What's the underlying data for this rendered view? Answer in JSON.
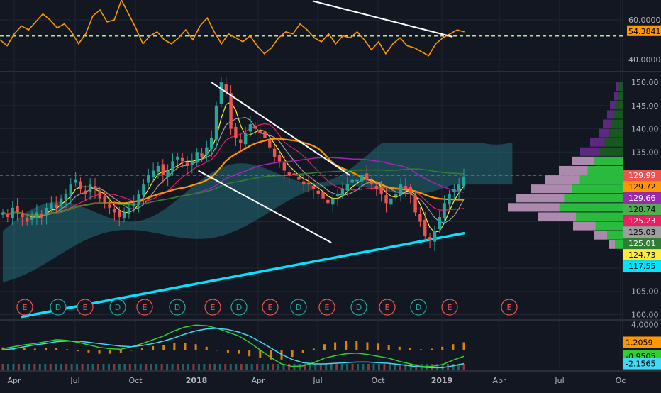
{
  "colors": {
    "background": "#131722",
    "grid": "#1f2533",
    "divider": "#2a2e39",
    "axis_text": "#b2b5be",
    "candle_up": "#26a69a",
    "candle_down": "#ef5350",
    "rsi_line": "#ff9800",
    "rsi_ref": "#b6e3a0",
    "trendline": "#ffffff",
    "macd_line": "#41d9f5",
    "signal_line": "#2fd12f",
    "hist_pos": "#ff9800",
    "hist_neg": "#ff9800",
    "cloud": "#2b9aa6",
    "earnings_marker": "#ef5350",
    "dividend_marker": "#26a69a"
  },
  "chart_data": [
    {
      "id": "rsi-pane",
      "type": "line",
      "ylim": [
        34,
        70
      ],
      "ticks": [
        "60.0000",
        "40.0000"
      ],
      "tick_values": [
        60,
        40
      ],
      "reference_level": 52.0,
      "current_value": "54.3841",
      "current_value_num": 54.3841,
      "series": [
        {
          "values": [
            50,
            47,
            53,
            57,
            55,
            59,
            63,
            60,
            56,
            58,
            54,
            48,
            53,
            62,
            65,
            59,
            60,
            70,
            63,
            56,
            48,
            52,
            54,
            50,
            48,
            51,
            55,
            50,
            57,
            61,
            54,
            48,
            53,
            51,
            49,
            52,
            47,
            43,
            46,
            51,
            54,
            53,
            58,
            55,
            51,
            49,
            53,
            48,
            52,
            51,
            54,
            50,
            45,
            49,
            43,
            48,
            51,
            47,
            46,
            44,
            42,
            48,
            51,
            53,
            55,
            54
          ]
        }
      ],
      "trendlines": [
        {
          "from": [
            0.67,
            69.5
          ],
          "to": [
            0.97,
            51.5
          ]
        }
      ]
    },
    {
      "id": "price-pane",
      "type": "candlestick",
      "ylim": [
        99,
        152
      ],
      "y_ticks": [
        "150.00",
        "145.00",
        "140.00",
        "135.00",
        "130.00",
        "125.00",
        "120.00",
        "115.00",
        "110.00",
        "105.00",
        "100.00"
      ],
      "y_tick_values": [
        150,
        145,
        140,
        135,
        130,
        125,
        120,
        115,
        110,
        105,
        100
      ],
      "close": [
        122,
        121,
        123,
        122,
        121,
        120,
        121,
        122,
        121,
        123,
        124,
        123,
        125,
        126,
        128,
        129,
        127,
        126,
        128,
        127,
        125,
        124,
        123,
        122,
        121,
        122,
        123,
        124,
        126,
        128,
        130,
        131,
        132,
        130,
        131,
        133,
        134,
        133,
        132,
        133,
        135,
        134,
        136,
        138,
        145,
        150,
        148,
        140,
        138,
        137,
        139,
        141,
        140,
        139,
        138,
        136,
        134,
        133,
        131,
        130,
        130,
        129,
        128,
        128,
        127,
        126,
        125,
        124,
        125,
        126,
        127,
        128,
        129,
        129,
        130,
        129,
        128,
        127,
        126,
        124,
        125,
        126,
        128,
        127,
        126,
        122,
        120,
        117,
        116,
        118,
        121,
        124,
        126,
        127,
        128,
        129.72
      ],
      "price_labels": [
        {
          "text": "129.99",
          "value": 129.99,
          "color": "#ef5350"
        },
        {
          "text": "129.72",
          "value": 129.72,
          "color": "#ff9800"
        },
        {
          "text": "129.66",
          "value": 129.66,
          "color": "#9c27b0"
        },
        {
          "text": "128.74",
          "value": 128.74,
          "color": "#4caf50"
        },
        {
          "text": "125.23",
          "value": 125.23,
          "color": "#e91e63"
        },
        {
          "text": "125.03",
          "value": 125.03,
          "color": "#9e9e9e"
        },
        {
          "text": "125.01",
          "value": 125.01,
          "color": "#2e7d32"
        },
        {
          "text": "124.73",
          "value": 124.73,
          "color": "#ffeb3b"
        },
        {
          "text": "117.55",
          "value": 117.55,
          "color": "#00e5ff"
        }
      ],
      "trendlines": [
        {
          "from": [
            0.32,
            150.0
          ],
          "to": [
            0.75,
            130.0
          ]
        },
        {
          "from": [
            0.3,
            131.0
          ],
          "to": [
            0.71,
            115.5
          ]
        }
      ],
      "events": [
        "E",
        "D",
        "E",
        "D",
        "E",
        "D",
        "E",
        "D",
        "E",
        "D",
        "E",
        "D",
        "E",
        "D",
        "E",
        "E"
      ]
    },
    {
      "id": "macd-pane",
      "type": "line",
      "ylim": [
        -3.2,
        4.6
      ],
      "ticks": [
        "4.0000"
      ],
      "tick_values": [
        4.0
      ],
      "value_labels": [
        {
          "text": "1.2059",
          "value": 1.2059,
          "color": "#ff9800"
        },
        {
          "text": "-0.9505",
          "value": -0.9505,
          "color": "#2fd12f"
        },
        {
          "text": "-2.1565",
          "value": -2.1565,
          "color": "#41d9f5"
        }
      ],
      "series": [
        {
          "name": "",
          "values": [
            0.2,
            0.5,
            0.8,
            1.0,
            1.3,
            1.6,
            1.5,
            1.2,
            0.8,
            0.4,
            0.2,
            0.1,
            0.5,
            1.0,
            1.6,
            2.2,
            3.0,
            3.6,
            3.9,
            3.8,
            3.4,
            2.8,
            2.2,
            1.2,
            0.0,
            -1.2,
            -2.2,
            -2.6,
            -2.5,
            -2.0,
            -1.3,
            -0.9,
            -0.6,
            -0.5,
            -0.7,
            -1.0,
            -1.3,
            -1.8,
            -2.2,
            -2.6,
            -2.6,
            -2.3,
            -1.6,
            -1.0
          ]
        },
        {
          "name": "",
          "values": [
            0.0,
            0.2,
            0.5,
            0.8,
            1.0,
            1.3,
            1.4,
            1.4,
            1.2,
            1.0,
            0.8,
            0.6,
            0.5,
            0.7,
            1.0,
            1.4,
            1.9,
            2.5,
            3.0,
            3.3,
            3.4,
            3.2,
            2.8,
            2.2,
            1.3,
            0.3,
            -0.7,
            -1.5,
            -2.0,
            -2.2,
            -2.2,
            -2.1,
            -2.0,
            -1.9,
            -1.9,
            -2.0,
            -2.1,
            -2.3,
            -2.5,
            -2.7,
            -2.8,
            -2.8,
            -2.5,
            -2.16
          ]
        }
      ],
      "histogram": [
        0.4,
        0.3,
        0.3,
        0.2,
        0.3,
        0.3,
        0.1,
        -0.2,
        -0.4,
        -0.6,
        -0.6,
        -0.5,
        0,
        0.3,
        0.6,
        0.8,
        1.1,
        1.1,
        0.9,
        0.5,
        0,
        -0.4,
        -0.6,
        -1.0,
        -1.3,
        -1.5,
        -1.5,
        -1.1,
        -0.5,
        0.2,
        0.9,
        1.2,
        1.4,
        1.4,
        1.2,
        1.0,
        0.8,
        0.5,
        0.3,
        0.1,
        0.2,
        0.5,
        0.9,
        1.2
      ]
    }
  ],
  "x_axis": {
    "labels": [
      "Apr",
      "Jul",
      "Oct",
      "2018",
      "Apr",
      "Jul",
      "Oct",
      "2019",
      "Apr",
      "Jul",
      "Oc"
    ],
    "bold": [
      false,
      false,
      false,
      true,
      false,
      false,
      false,
      true,
      false,
      false,
      false
    ]
  }
}
